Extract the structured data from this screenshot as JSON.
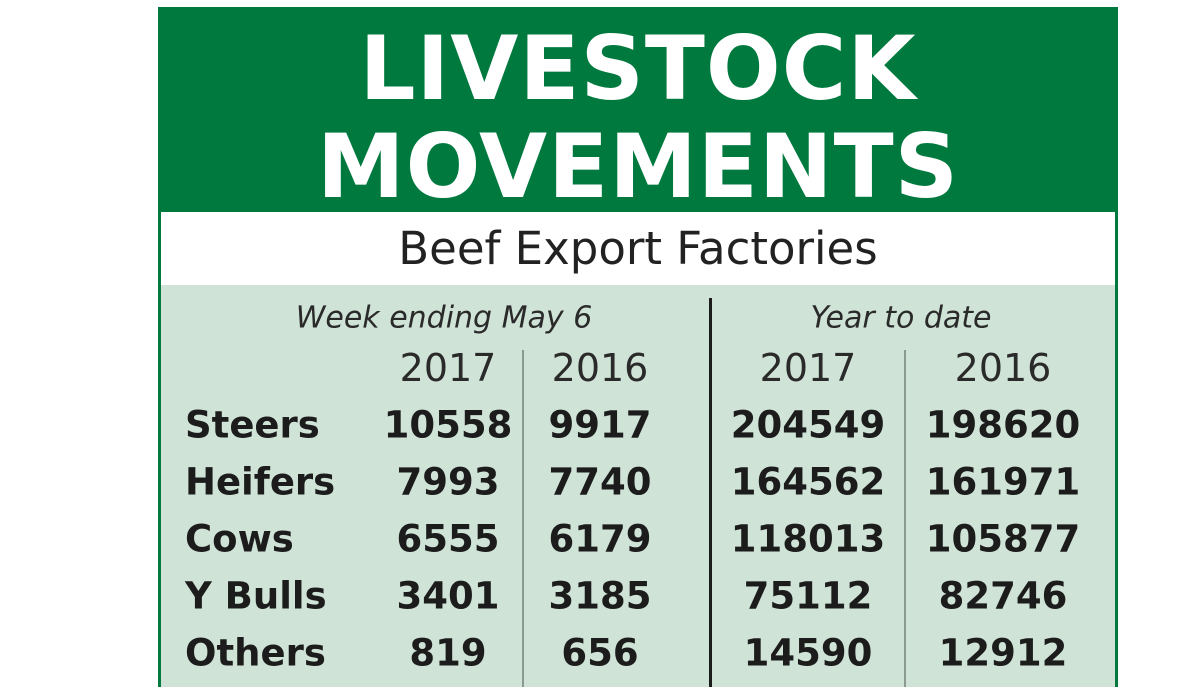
{
  "title_line1": "LIVESTOCK",
  "title_line2": "MOVEMENTS",
  "subtitle": "Beef Export Factories",
  "colors": {
    "header_green": "#00793f",
    "table_bg": "#cfe3d7"
  },
  "chart_data": {
    "type": "table",
    "title": "LIVESTOCK MOVEMENTS",
    "subtitle": "Beef Export Factories",
    "groups": [
      {
        "label": "Week ending May 6",
        "columns": [
          "2017",
          "2016"
        ]
      },
      {
        "label": "Year to date",
        "columns": [
          "2017",
          "2016"
        ]
      }
    ],
    "rows": [
      {
        "label": "Steers",
        "values": [
          "10558",
          "9917",
          "204549",
          "198620"
        ]
      },
      {
        "label": "Heifers",
        "values": [
          "7993",
          "7740",
          "164562",
          "161971"
        ]
      },
      {
        "label": "Cows",
        "values": [
          "6555",
          "6179",
          "118013",
          "105877"
        ]
      },
      {
        "label": "Y Bulls",
        "values": [
          "3401",
          "3185",
          "75112",
          "82746"
        ]
      },
      {
        "label": "Others",
        "values": [
          "819",
          "656",
          "14590",
          "12912"
        ]
      }
    ]
  }
}
